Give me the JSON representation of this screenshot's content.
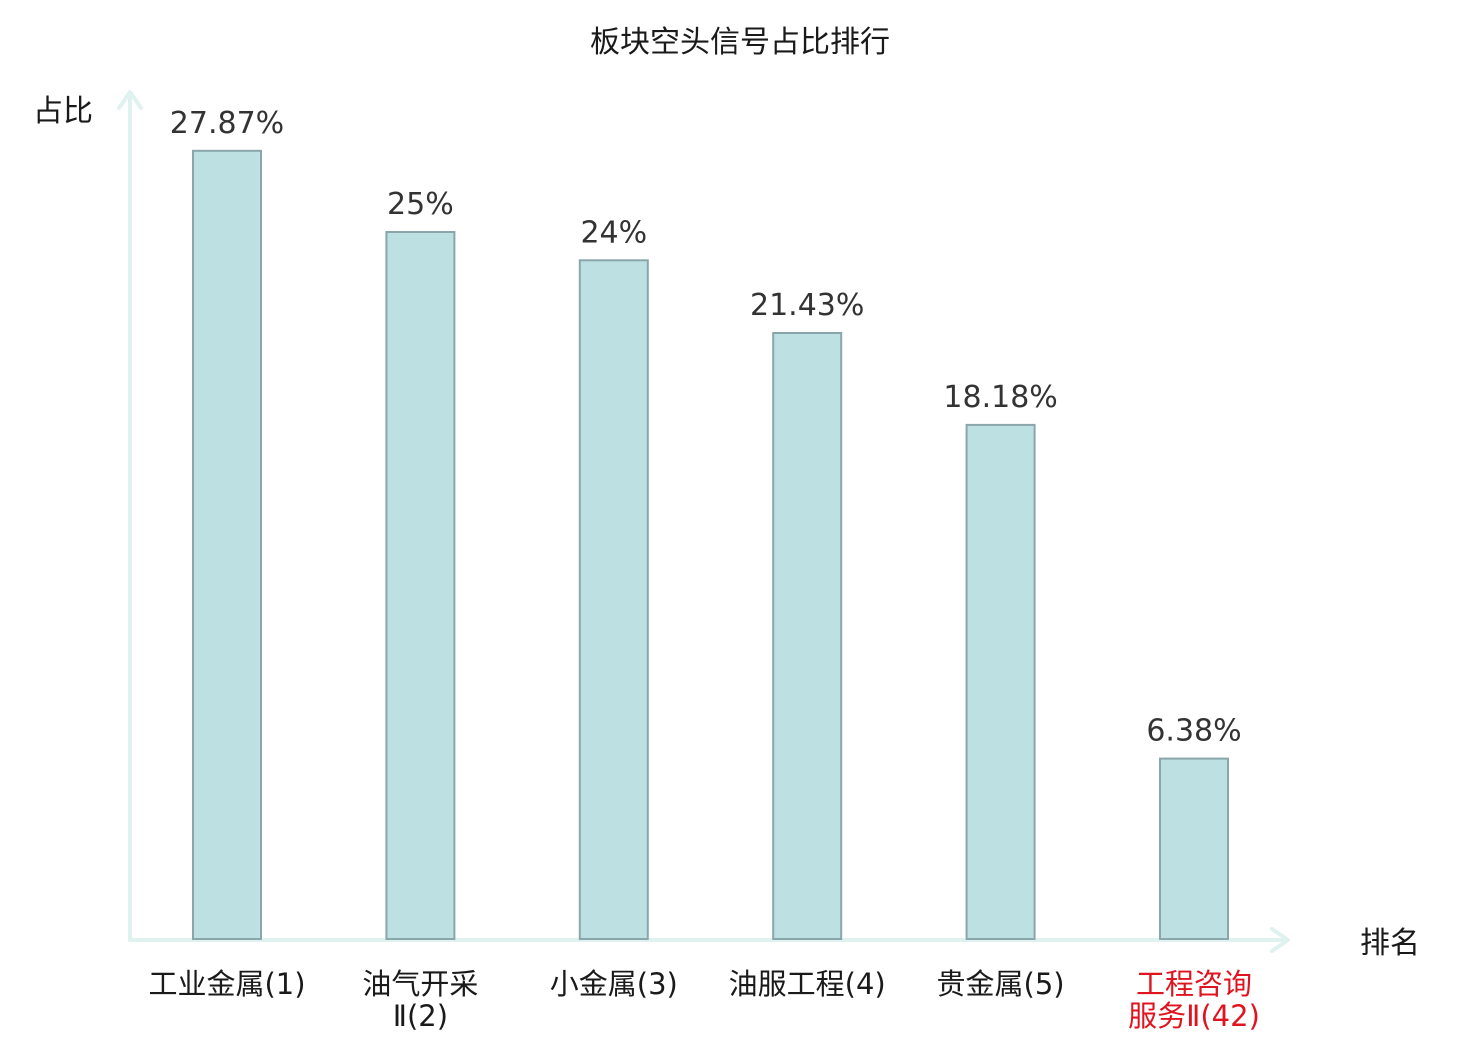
{
  "chart_data": {
    "type": "bar",
    "title": "板块空头信号占比排行",
    "ylabel": "占比",
    "xlabel": "排名",
    "categories": [
      {
        "line1": "工业金属(1)",
        "line2": "",
        "highlight": false
      },
      {
        "line1": "油气开采",
        "line2": "Ⅱ(2)",
        "highlight": false
      },
      {
        "line1": "小金属(3)",
        "line2": "",
        "highlight": false
      },
      {
        "line1": "油服工程(4)",
        "line2": "",
        "highlight": false
      },
      {
        "line1": "贵金属(5)",
        "line2": "",
        "highlight": false
      },
      {
        "line1": "工程咨询",
        "line2": "服务Ⅱ(42)",
        "highlight": true
      }
    ],
    "values": [
      27.87,
      25,
      24,
      21.43,
      18.18,
      6.38
    ],
    "value_labels": [
      "27.87%",
      "25%",
      "24%",
      "21.43%",
      "18.18%",
      "6.38%"
    ],
    "ylim": [
      0,
      30
    ],
    "grid": false,
    "colors": {
      "bar_fill": "#bde0e3",
      "bar_stroke": "#8aa6aa",
      "axis": "#dff2ef",
      "label_normal": "#1a1a1a",
      "label_highlight": "#e0141e"
    }
  }
}
